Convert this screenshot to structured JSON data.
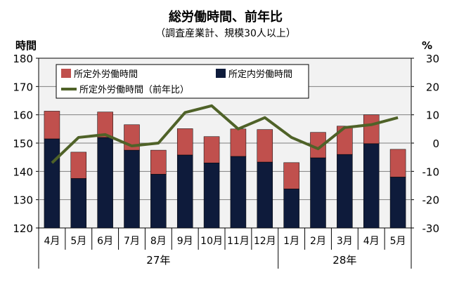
{
  "chart_data": {
    "type": "bar",
    "title": "総労働時間、前年比",
    "subtitle": "（調査産業計、規模30人以上）",
    "ylabel_left": "時間",
    "ylabel_right": "%",
    "y_left_range": [
      120,
      180
    ],
    "y_left_ticks": [
      "120",
      "130",
      "140",
      "150",
      "160",
      "170",
      "180"
    ],
    "y_right_range": [
      -30,
      30
    ],
    "y_right_ticks": [
      "-30",
      "-20",
      "-10",
      "0",
      "10",
      "20",
      "30"
    ],
    "categories": [
      "4月",
      "5月",
      "6月",
      "7月",
      "8月",
      "9月",
      "10月",
      "11月",
      "12月",
      "1月",
      "2月",
      "3月",
      "4月",
      "5月"
    ],
    "year_groups": [
      {
        "label": "27年",
        "start": 0,
        "count": 9
      },
      {
        "label": "28年",
        "start": 9,
        "count": 5
      }
    ],
    "series": [
      {
        "name": "所定内労働時間",
        "type": "stacked-bar",
        "color": "#0e1b3b",
        "values": [
          151.5,
          137.5,
          152.0,
          147.5,
          139.0,
          145.8,
          143.0,
          145.3,
          143.3,
          133.8,
          144.8,
          146.0,
          149.8,
          138.0
        ]
      },
      {
        "name": "所定外労働時間",
        "type": "stacked-bar",
        "color": "#c0504d",
        "values": [
          9.8,
          9.3,
          9.0,
          9.0,
          8.5,
          9.3,
          9.3,
          9.7,
          11.5,
          9.3,
          9.0,
          10.0,
          10.2,
          9.8
        ]
      },
      {
        "name": "所定外労働時間（前年比）",
        "type": "line",
        "axis": "right",
        "color": "#4f6228",
        "values": [
          -7.0,
          2.0,
          3.0,
          -1.0,
          0.0,
          10.8,
          13.2,
          5.0,
          9.0,
          2.0,
          -2.0,
          5.5,
          6.5,
          9.0
        ]
      }
    ],
    "legend": [
      {
        "label": "所定外労働時間",
        "kind": "bar",
        "color": "#c0504d"
      },
      {
        "label": "所定内労働時間",
        "kind": "bar",
        "color": "#0e1b3b"
      },
      {
        "label": "所定外労働時間（前年比）",
        "kind": "line",
        "color": "#4f6228"
      }
    ],
    "legend_placement": "top-left",
    "grid": true,
    "plot_background": "#f2f2f2"
  }
}
